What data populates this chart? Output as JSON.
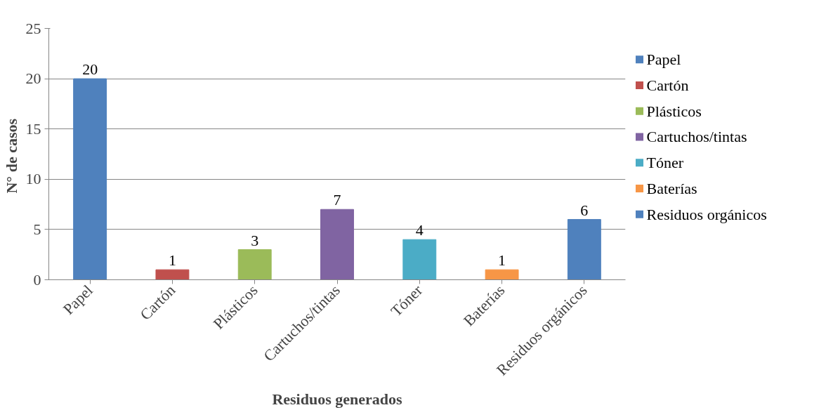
{
  "chart_data": {
    "type": "bar",
    "xlabel": "Residuos generados",
    "ylabel": "N°  de casos",
    "categories": [
      "Papel",
      "Cartón",
      "Plásticos",
      "Cartuchos/tintas",
      "Tóner",
      "Baterías",
      "Residuos orgánicos"
    ],
    "series": [
      {
        "name": "Papel",
        "color": "#4f81bd",
        "values": [
          20,
          null,
          null,
          null,
          null,
          null,
          null
        ]
      },
      {
        "name": "Cartón",
        "color": "#c0504d",
        "values": [
          null,
          1,
          null,
          null,
          null,
          null,
          null
        ]
      },
      {
        "name": "Plásticos",
        "color": "#9bbb59",
        "values": [
          null,
          null,
          3,
          null,
          null,
          null,
          null
        ]
      },
      {
        "name": "Cartuchos/tintas",
        "color": "#8064a2",
        "values": [
          null,
          null,
          null,
          7,
          null,
          null,
          null
        ]
      },
      {
        "name": "Tóner",
        "color": "#4bacc6",
        "values": [
          null,
          null,
          null,
          null,
          4,
          null,
          null
        ]
      },
      {
        "name": "Baterías",
        "color": "#f79646",
        "values": [
          null,
          null,
          null,
          null,
          null,
          1,
          null
        ]
      },
      {
        "name": "Residuos orgánicos",
        "color": "#4f81bd",
        "values": [
          null,
          null,
          null,
          null,
          null,
          null,
          6
        ]
      }
    ],
    "ylim": [
      0,
      25
    ],
    "yticks": [
      0,
      5,
      10,
      15,
      20,
      25
    ],
    "grid": "y",
    "legend": "right",
    "data_labels": true
  }
}
